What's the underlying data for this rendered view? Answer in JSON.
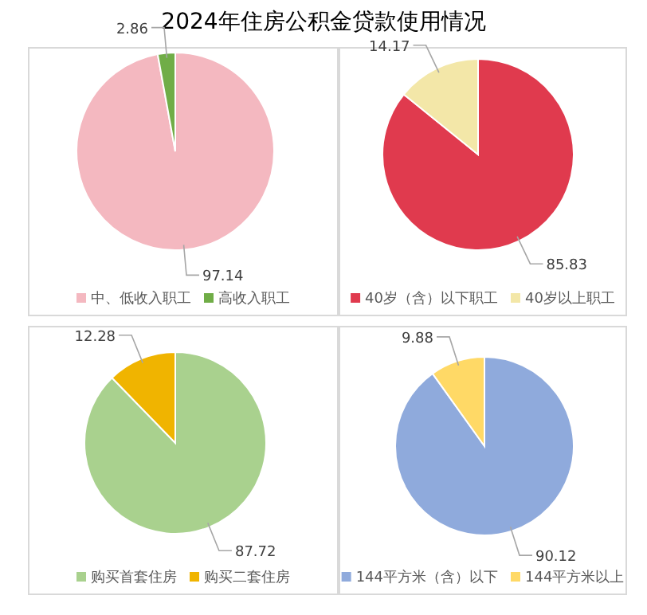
{
  "chart_data": [
    {
      "type": "pie",
      "title": "2024年住房公积金贷款使用情况",
      "categories": [
        "中、低收入职工",
        "高收入职工"
      ],
      "values": [
        97.14,
        2.86
      ],
      "colors": [
        "#f4b8c0",
        "#70ad47"
      ],
      "data_labels": true,
      "legend": "bottom"
    },
    {
      "type": "pie",
      "categories": [
        "40岁（含）以下职工",
        "40岁以上职工"
      ],
      "values": [
        85.83,
        14.17
      ],
      "colors": [
        "#e03a4e",
        "#f3e7a8"
      ],
      "data_labels": true,
      "legend": "bottom"
    },
    {
      "type": "pie",
      "categories": [
        "购买首套住房",
        "购买二套住房"
      ],
      "values": [
        87.72,
        12.28
      ],
      "colors": [
        "#a9d18e",
        "#f0b400"
      ],
      "data_labels": true,
      "legend": "bottom"
    },
    {
      "type": "pie",
      "categories": [
        "144平方米（含）以下",
        "144平方米以上"
      ],
      "values": [
        90.12,
        9.88
      ],
      "colors": [
        "#8faadc",
        "#ffd966"
      ],
      "data_labels": true,
      "legend": "bottom"
    }
  ]
}
